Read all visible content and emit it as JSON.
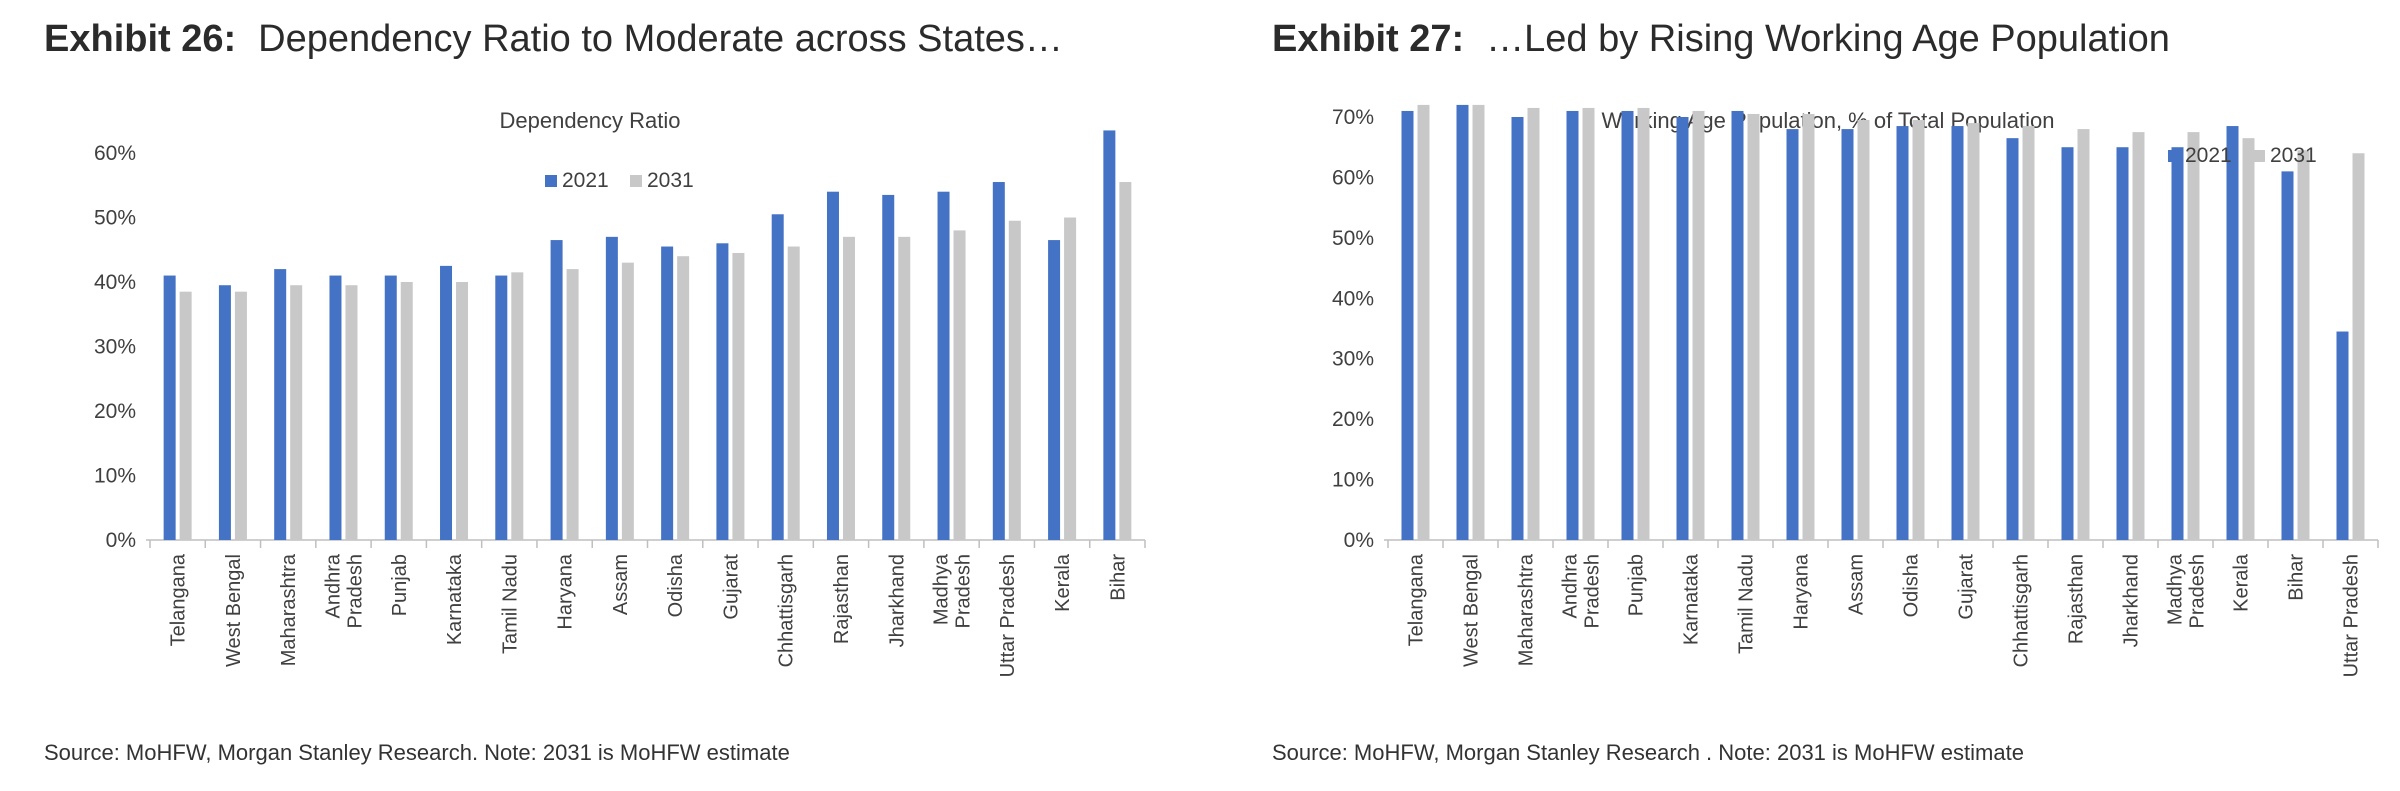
{
  "exhibits": [
    {
      "label": "Exhibit 26:",
      "title": "Dependency Ratio to Moderate across States…",
      "source": "Source: MoHFW, Morgan Stanley Research. Note: 2031 is MoHFW estimate"
    },
    {
      "label": "Exhibit 27:",
      "title": "…Led by Rising Working Age Population",
      "source": "Source: MoHFW, Morgan Stanley Research . Note: 2031 is MoHFW estimate"
    }
  ],
  "colors": {
    "s2021": "#4472C4",
    "s2031": "#C8C8C8",
    "axis": "#BFBFBF",
    "text": "#404040"
  },
  "chart_data": [
    {
      "type": "bar",
      "title": "Dependency Ratio",
      "xlabel": "",
      "ylabel": "",
      "ylim": [
        0,
        0.6
      ],
      "yticks": [
        0,
        0.1,
        0.2,
        0.3,
        0.4,
        0.5,
        0.6
      ],
      "ytick_labels": [
        "0%",
        "10%",
        "20%",
        "30%",
        "40%",
        "50%",
        "60%"
      ],
      "legend_position": "top-center",
      "categories": [
        "Telangana",
        "West Bengal",
        "Maharashtra",
        "Andhra\nPradesh",
        "Punjab",
        "Karnataka",
        "Tamil Nadu",
        "Haryana",
        "Assam",
        "Odisha",
        "Gujarat",
        "Chhattisgarh",
        "Rajasthan",
        "Jharkhand",
        "Madhya\nPradesh",
        "Uttar Pradesh",
        "Kerala",
        "Bihar"
      ],
      "series": [
        {
          "name": "2021",
          "values": [
            0.41,
            0.395,
            0.42,
            0.41,
            0.41,
            0.425,
            0.41,
            0.465,
            0.47,
            0.455,
            0.46,
            0.505,
            0.54,
            0.535,
            0.54,
            0.555,
            0.465,
            0.635
          ]
        },
        {
          "name": "2031",
          "values": [
            0.385,
            0.385,
            0.395,
            0.395,
            0.4,
            0.4,
            0.415,
            0.42,
            0.43,
            0.44,
            0.445,
            0.455,
            0.47,
            0.47,
            0.48,
            0.495,
            0.5,
            0.555
          ]
        }
      ]
    },
    {
      "type": "bar",
      "title": "Working Age Population, % of Total Population",
      "xlabel": "",
      "ylabel": "",
      "ylim": [
        0,
        0.7
      ],
      "yticks": [
        0,
        0.1,
        0.2,
        0.3,
        0.4,
        0.5,
        0.6,
        0.7
      ],
      "ytick_labels": [
        "0%",
        "10%",
        "20%",
        "30%",
        "40%",
        "50%",
        "60%",
        "70%"
      ],
      "legend_position": "top-right",
      "categories": [
        "Telangana",
        "West Bengal",
        "Maharashtra",
        "Andhra\nPradesh",
        "Punjab",
        "Karnataka",
        "Tamil Nadu",
        "Haryana",
        "Assam",
        "Odisha",
        "Gujarat",
        "Chhattisgarh",
        "Rajasthan",
        "Jharkhand",
        "Madhya\nPradesh",
        "Kerala",
        "Bihar",
        "Uttar Pradesh"
      ],
      "series": [
        {
          "name": "2021",
          "values": [
            0.71,
            0.72,
            0.7,
            0.71,
            0.71,
            0.7,
            0.71,
            0.68,
            0.68,
            0.685,
            0.685,
            0.665,
            0.65,
            0.65,
            0.65,
            0.685,
            0.61,
            0.345
          ]
        },
        {
          "name": "2031",
          "values": [
            0.72,
            0.72,
            0.715,
            0.715,
            0.715,
            0.71,
            0.705,
            0.705,
            0.695,
            0.695,
            0.69,
            0.685,
            0.68,
            0.675,
            0.675,
            0.665,
            0.645,
            0.64
          ]
        }
      ]
    }
  ]
}
